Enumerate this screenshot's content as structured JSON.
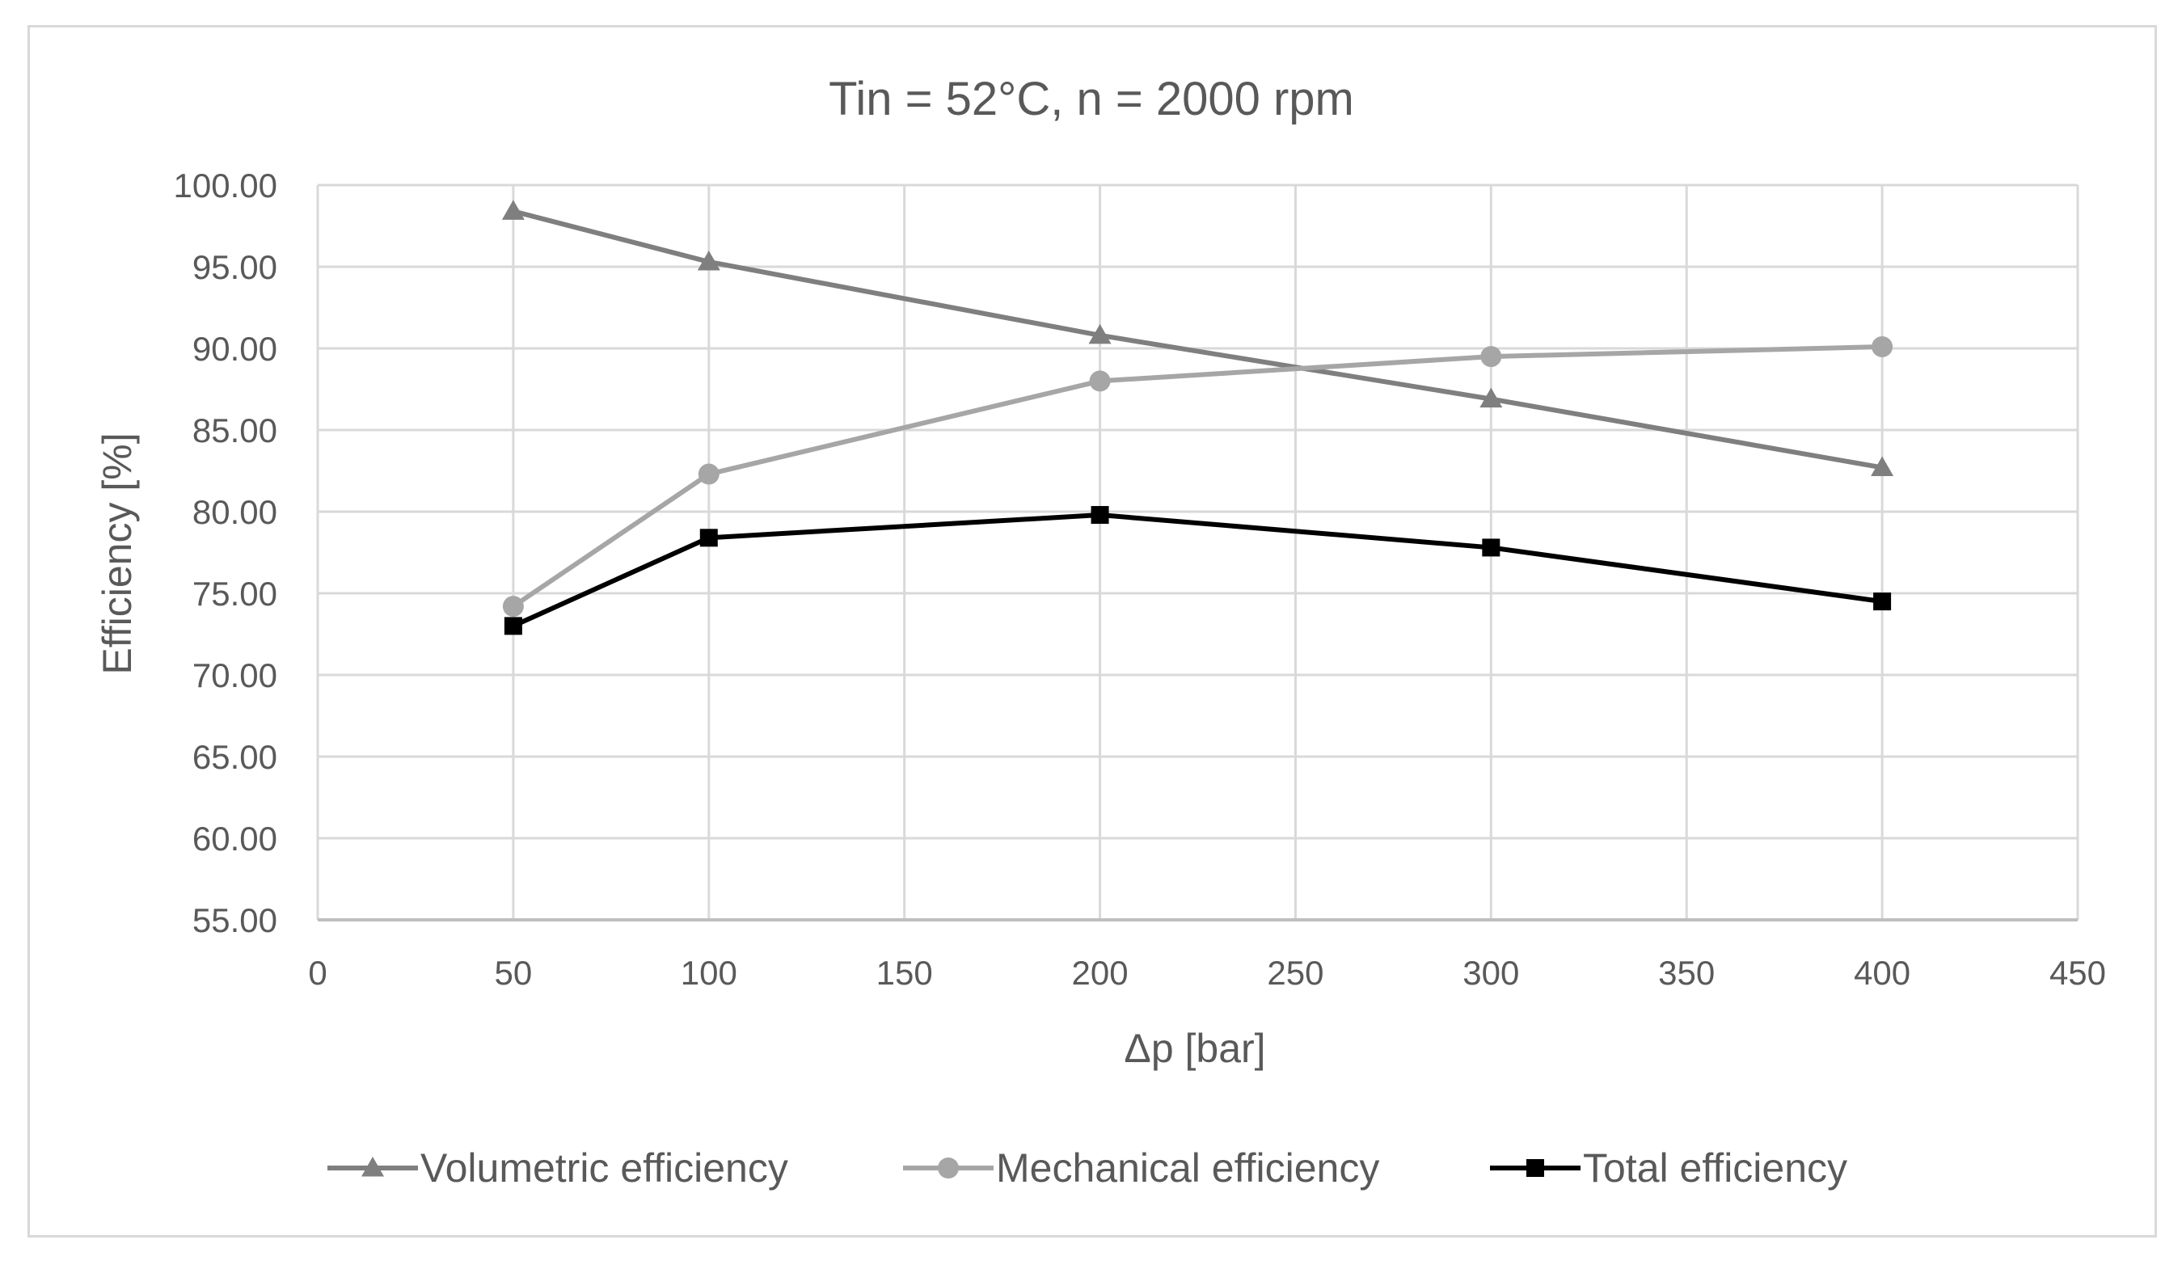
{
  "chart_data": {
    "type": "line",
    "title": "Tin = 52°C, n = 2000 rpm",
    "xlabel": "Δp [bar]",
    "ylabel": "Efficiency [%]",
    "xlim": [
      0,
      450
    ],
    "ylim": [
      55,
      100
    ],
    "x_ticks": [
      "0",
      "50",
      "100",
      "150",
      "200",
      "250",
      "300",
      "350",
      "400",
      "450"
    ],
    "y_ticks": [
      "55.00",
      "60.00",
      "65.00",
      "70.00",
      "75.00",
      "80.00",
      "85.00",
      "90.00",
      "95.00",
      "100.00"
    ],
    "grid": true,
    "legend_position": "bottom",
    "series": [
      {
        "name": "Volumetric efficiency",
        "marker": "triangle",
        "color": "#7f7f7f",
        "x": [
          50,
          100,
          200,
          300,
          400
        ],
        "values": [
          98.4,
          95.3,
          90.8,
          86.9,
          82.7
        ]
      },
      {
        "name": "Mechanical efficiency",
        "marker": "circle",
        "color": "#a6a6a6",
        "x": [
          50,
          100,
          200,
          300,
          400
        ],
        "values": [
          74.2,
          82.3,
          88.0,
          89.5,
          90.1
        ]
      },
      {
        "name": "Total efficiency",
        "marker": "square",
        "color": "#000000",
        "x": [
          50,
          100,
          200,
          300,
          400
        ],
        "values": [
          73.0,
          78.4,
          79.8,
          77.8,
          74.5
        ]
      }
    ]
  }
}
